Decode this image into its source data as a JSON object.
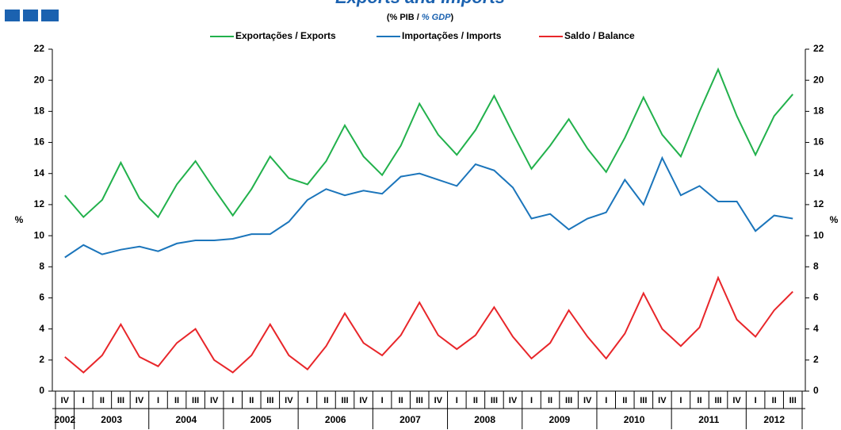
{
  "chart_data": {
    "type": "line",
    "title": "Exports and Imports",
    "subtitle": [
      "(% PIB / ",
      "% GDP",
      ")"
    ],
    "categories": [
      "IV",
      "I",
      "II",
      "III",
      "IV",
      "I",
      "II",
      "III",
      "IV",
      "I",
      "II",
      "III",
      "IV",
      "I",
      "II",
      "III",
      "IV",
      "I",
      "II",
      "III",
      "IV",
      "I",
      "II",
      "III",
      "IV",
      "I",
      "II",
      "III",
      "IV",
      "I",
      "II",
      "III",
      "IV",
      "I",
      "II",
      "III",
      "IV",
      "I",
      "II",
      "III"
    ],
    "years": [
      "2002",
      "2003",
      "2004",
      "2005",
      "2006",
      "2007",
      "2008",
      "2009",
      "2010",
      "2011",
      "2012"
    ],
    "ylabel": "%",
    "y2label": "%",
    "ylim": [
      0,
      22
    ],
    "yticks": [
      0,
      2,
      4,
      6,
      8,
      10,
      12,
      14,
      16,
      18,
      20,
      22
    ],
    "y2lim": [
      0,
      22
    ],
    "y2ticks": [
      0,
      2,
      4,
      6,
      8,
      10,
      12,
      14,
      16,
      18,
      20,
      22
    ],
    "legend": "top",
    "series": [
      {
        "name": "Exportações / Exports",
        "color": "#22b14c",
        "values": [
          12.6,
          11.2,
          12.3,
          14.7,
          12.4,
          11.2,
          13.3,
          14.8,
          13.0,
          11.3,
          13.0,
          15.1,
          13.7,
          13.3,
          14.8,
          17.1,
          15.1,
          13.9,
          15.8,
          18.5,
          16.5,
          15.2,
          16.8,
          19.0,
          16.6,
          14.3,
          15.8,
          17.5,
          15.6,
          14.1,
          16.3,
          18.9,
          16.5,
          15.1,
          18.0,
          20.7,
          17.7,
          15.2,
          17.7,
          19.1
        ]
      },
      {
        "name": "Importações / Imports",
        "color": "#1b75bb",
        "values": [
          8.6,
          9.4,
          8.8,
          9.1,
          9.3,
          9.0,
          9.5,
          9.7,
          9.7,
          9.8,
          10.1,
          10.1,
          10.9,
          12.3,
          13.0,
          12.6,
          12.9,
          12.7,
          13.8,
          14.0,
          13.6,
          13.2,
          14.6,
          14.2,
          13.1,
          11.1,
          11.4,
          10.4,
          11.1,
          11.5,
          13.6,
          12.0,
          15.0,
          12.6,
          13.2,
          12.2,
          12.2,
          10.3,
          11.3,
          11.1
        ]
      },
      {
        "name": "Saldo / Balance",
        "color": "#e8262a",
        "values": [
          2.2,
          1.2,
          2.3,
          4.3,
          2.2,
          1.6,
          3.1,
          4.0,
          2.0,
          1.2,
          2.3,
          4.3,
          2.3,
          1.4,
          2.9,
          5.0,
          3.1,
          2.3,
          3.6,
          5.7,
          3.6,
          2.7,
          3.6,
          5.4,
          3.5,
          2.1,
          3.1,
          5.2,
          3.5,
          2.1,
          3.7,
          6.3,
          4.0,
          2.9,
          4.1,
          7.3,
          4.6,
          3.5,
          5.2,
          6.4
        ]
      }
    ]
  }
}
